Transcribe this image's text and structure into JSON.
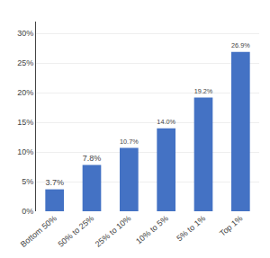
{
  "chart_data": {
    "type": "bar",
    "categories": [
      "Bottom 50%",
      "50% to 25%",
      "25% to 10%",
      "10% to 5%",
      "5% to 1%",
      "Top 1%"
    ],
    "values": [
      3.7,
      7.8,
      10.7,
      14.0,
      19.2,
      26.9
    ],
    "value_labels": [
      "3.7%",
      "7.8%",
      "10.7%",
      "14.0%",
      "19.2%",
      "26.9%"
    ],
    "data_labels": true,
    "color": "#4472C4",
    "ylim": [
      0,
      32
    ],
    "yticks": [
      {
        "value": 0,
        "label": "0%"
      },
      {
        "value": 5,
        "label": "5%"
      },
      {
        "value": 10,
        "label": "10%"
      },
      {
        "value": 15,
        "label": "15%"
      },
      {
        "value": 20,
        "label": "20%"
      },
      {
        "value": 25,
        "label": "25%"
      },
      {
        "value": 30,
        "label": "30%"
      }
    ],
    "grid": true
  }
}
